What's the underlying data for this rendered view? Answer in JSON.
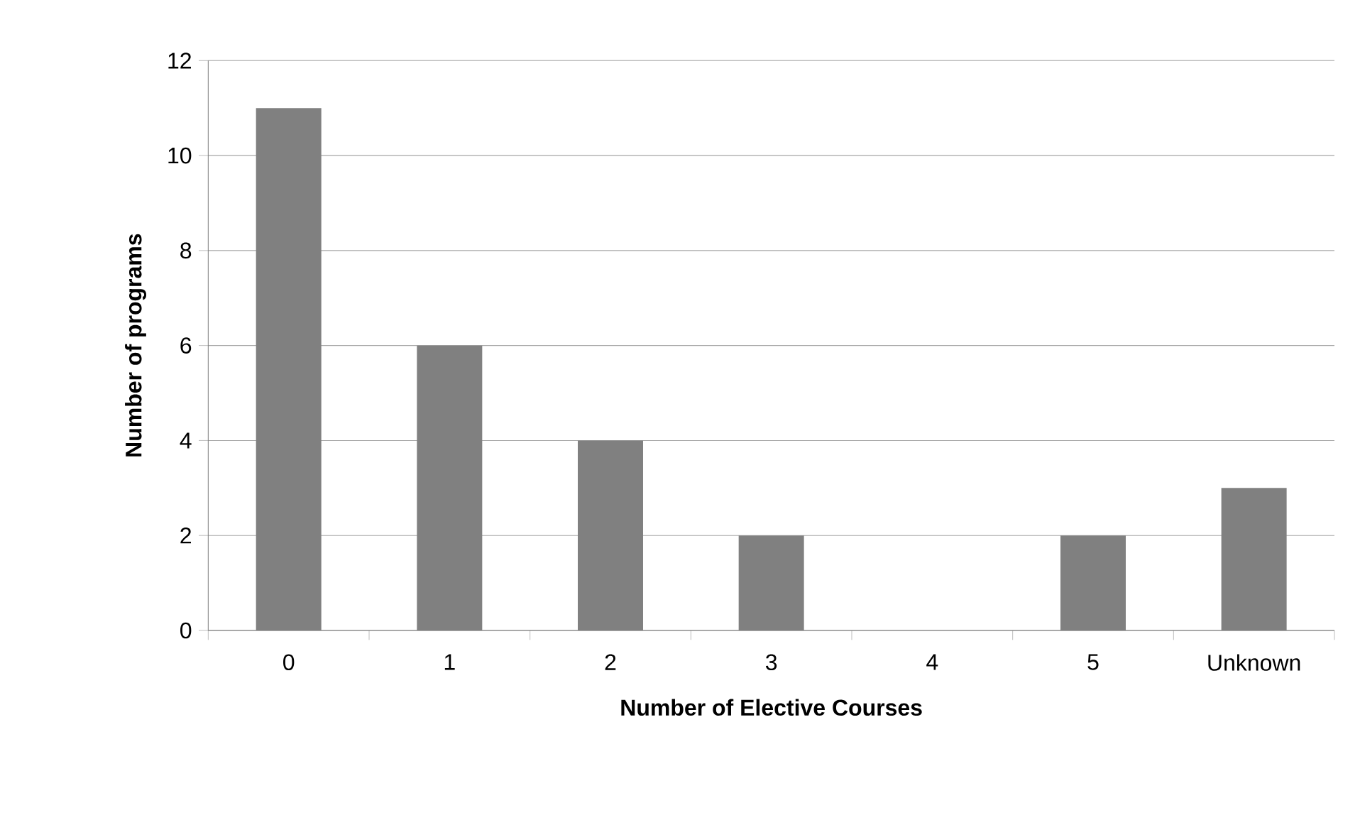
{
  "chart_data": {
    "type": "bar",
    "xlabel": "Number of Elective Courses",
    "ylabel": "Number of programs",
    "categories": [
      "0",
      "1",
      "2",
      "3",
      "4",
      "5",
      "Unknown"
    ],
    "values": [
      11,
      6,
      4,
      2,
      0,
      2,
      3
    ],
    "color": "#808080",
    "ylim": [
      0,
      12
    ],
    "yticks": [
      0,
      2,
      4,
      6,
      8,
      10,
      12
    ],
    "grid": "y"
  }
}
